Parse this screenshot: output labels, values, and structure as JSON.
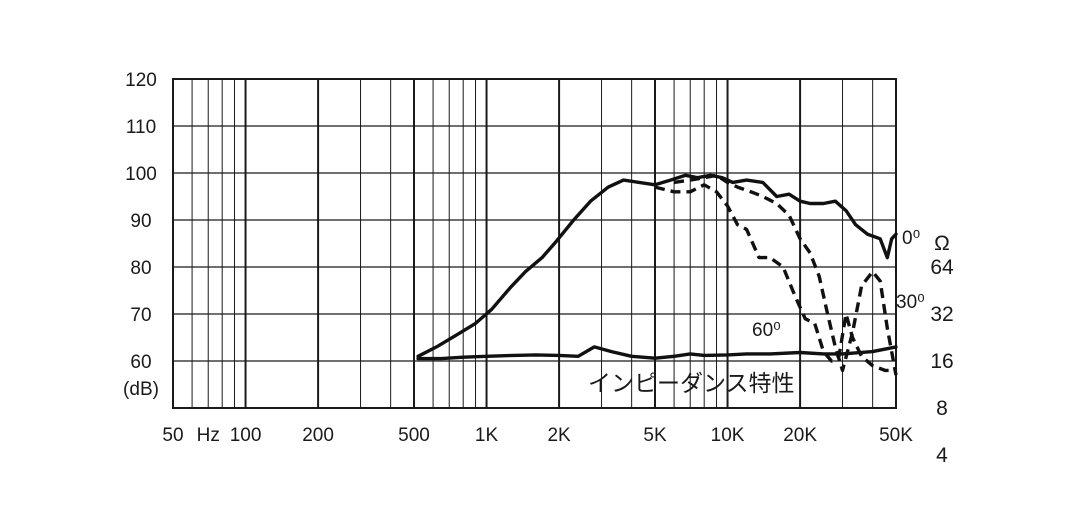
{
  "chart_data": {
    "type": "line",
    "title": "",
    "xscale": "log",
    "xlim": [
      50,
      50000
    ],
    "ylim": [
      50,
      120
    ],
    "y_ticks": [
      "120",
      "110",
      "100",
      "90",
      "80",
      "70",
      "60"
    ],
    "y_tick_values": [
      120,
      110,
      100,
      90,
      80,
      70,
      60
    ],
    "ylabel": "(dB)",
    "x_ticks": [
      "50",
      "Hz",
      "100",
      "200",
      "500",
      "1K",
      "2K",
      "5K",
      "10K",
      "20K",
      "50K"
    ],
    "x_tick_values": [
      50,
      70,
      100,
      200,
      500,
      1000,
      2000,
      5000,
      10000,
      20000,
      50000
    ],
    "impedance_axis_title": "Ω",
    "impedance_axis": [
      "64",
      "32",
      "16",
      "8",
      "4"
    ],
    "impedance_axis_values": [
      80,
      70,
      60,
      50,
      40
    ],
    "grid": true,
    "series": [
      {
        "name": "0⁰",
        "style": "solid",
        "x": [
          520,
          620,
          750,
          900,
          1050,
          1250,
          1450,
          1700,
          1950,
          2300,
          2700,
          3200,
          3700,
          4300,
          5000,
          5800,
          6700,
          7500,
          8500,
          9500,
          10500,
          12000,
          14000,
          16000,
          18000,
          20000,
          22000,
          25000,
          28000,
          31000,
          34000,
          38000,
          43000,
          46000,
          48000,
          50000
        ],
        "y": [
          61,
          63,
          65.5,
          68,
          71,
          75.5,
          79,
          82,
          85.5,
          90,
          94,
          97,
          98.5,
          98,
          97.5,
          98.5,
          99.5,
          99,
          99.5,
          99,
          98,
          98.5,
          98,
          95,
          95.5,
          94,
          93.5,
          93.5,
          94,
          92,
          89,
          87,
          86,
          82,
          86,
          87
        ]
      },
      {
        "name": "30⁰",
        "style": "dashed",
        "x": [
          6000,
          7000,
          8000,
          9000,
          10000,
          11000,
          12500,
          14000,
          16000,
          18000,
          20000,
          22000,
          24000,
          26000,
          28000,
          30000,
          33000,
          36000,
          40000,
          43000,
          46000,
          50000
        ],
        "y": [
          98,
          98.5,
          99,
          99.5,
          98,
          97,
          96,
          95,
          93.5,
          91,
          86,
          83,
          78,
          70,
          63,
          58,
          66,
          76,
          79,
          77,
          67,
          57
        ]
      },
      {
        "name": "60⁰",
        "style": "dashed",
        "x": [
          5000,
          6000,
          7000,
          8000,
          9000,
          10000,
          11000,
          12000,
          13500,
          15000,
          17000,
          19000,
          21000,
          23000,
          25000,
          27000,
          29000,
          31000,
          33000,
          36000,
          40000,
          45000,
          50000
        ],
        "y": [
          97,
          96,
          96,
          97.5,
          96,
          93,
          89,
          88,
          82,
          82,
          80,
          74,
          69,
          68,
          62,
          60,
          61,
          70,
          65,
          61,
          59,
          58,
          58
        ]
      },
      {
        "name": "インピーダンス特性",
        "style": "solid",
        "x": [
          520,
          650,
          800,
          1000,
          1300,
          1600,
          2000,
          2400,
          2800,
          3300,
          4000,
          5000,
          6000,
          7000,
          8000,
          10000,
          12000,
          15000,
          20000,
          25000,
          30000,
          40000,
          50000
        ],
        "y": [
          60.5,
          60.5,
          60.8,
          61,
          61.2,
          61.3,
          61.2,
          61,
          63,
          62,
          61,
          60.6,
          61,
          61.5,
          61.2,
          61.3,
          61.5,
          61.5,
          61.8,
          61.5,
          61.5,
          62,
          63
        ]
      }
    ]
  }
}
